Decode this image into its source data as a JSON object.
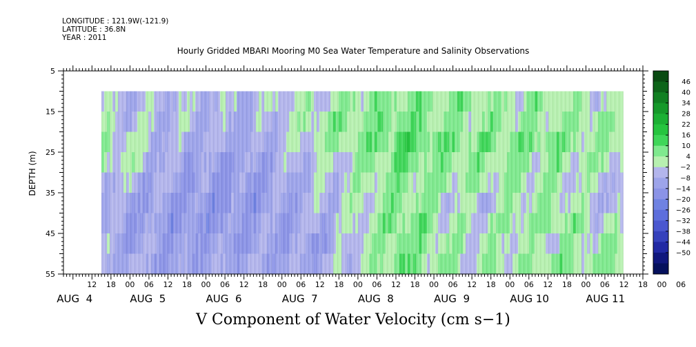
{
  "header": {
    "longitude": "LONGITUDE : 121.9W(-121.9)",
    "latitude": "LATITUDE : 36.8N",
    "year": "YEAR : 2011"
  },
  "chart_data": {
    "type": "heatmap",
    "title": "Hourly Gridded MBARI Mooring M0 Sea Water Temperature and Salinity Observations",
    "xlabel": "V Component of Water Velocity (cm s−1)",
    "ylabel": "DEPTH (m)",
    "ylim": [
      5,
      55
    ],
    "y_ticks": [
      "5",
      "15",
      "25",
      "35",
      "45",
      "55"
    ],
    "x_hour_ticks": [
      "12",
      "18",
      "00",
      "06",
      "12",
      "18",
      "00",
      "06",
      "12",
      "18",
      "00",
      "06",
      "12",
      "18",
      "00",
      "06",
      "12",
      "18",
      "00",
      "06",
      "12",
      "18",
      "00",
      "06",
      "12",
      "18",
      "00",
      "06",
      "12",
      "18",
      "00",
      "06"
    ],
    "x_day_labels": [
      "AUG  4",
      "AUG  5",
      "AUG  6",
      "AUG  7",
      "AUG  8",
      "AUG  9",
      "AUG 10",
      "AUG 11"
    ],
    "data_depth_range": [
      10,
      55
    ],
    "data_start": "AUG 4 15:00",
    "data_end": "AUG 11 12:00",
    "colorbar": {
      "levels": [
        46,
        40,
        34,
        28,
        22,
        16,
        10,
        4,
        -2,
        -8,
        -14,
        -20,
        -26,
        -32,
        -38,
        -44,
        -50
      ],
      "labels": [
        "46",
        "40",
        "34",
        "28",
        "22",
        "16",
        "10",
        "4",
        "−2",
        "−8",
        "−14",
        "−20",
        "−26",
        "−32",
        "−38",
        "−44",
        "−50"
      ],
      "colors": [
        "#0a4a12",
        "#0d6419",
        "#118022",
        "#16992a",
        "#1cb034",
        "#26c43f",
        "#3fd659",
        "#7fe98e",
        "#b7f0b0",
        "#b3b5ec",
        "#9da4ea",
        "#8b93e6",
        "#6f82e2",
        "#5d6edc",
        "#4a57cf",
        "#3541bc",
        "#2129a4",
        "#10177d",
        "#05105c"
      ]
    },
    "columns": [
      {
        "day": "AUG  4",
        "v": [
          -6,
          -2,
          4,
          3,
          -4,
          -8,
          -10,
          -9,
          -8
        ]
      },
      {
        "day": "AUG  5",
        "v": [
          -4,
          -6,
          -8,
          -10,
          -12,
          -14,
          -14,
          -12,
          -12
        ]
      },
      {
        "day": "AUG  6",
        "v": [
          -6,
          -8,
          -10,
          -12,
          -14,
          -14,
          -12,
          -12,
          -10
        ]
      },
      {
        "day": "AUG  7",
        "v": [
          2,
          4,
          2,
          -2,
          -4,
          -6,
          -8,
          -10,
          -8
        ]
      },
      {
        "day": "AUG  8",
        "v": [
          6,
          8,
          10,
          8,
          6,
          6,
          8,
          8,
          8
        ]
      },
      {
        "day": "AUG  9",
        "v": [
          4,
          2,
          6,
          4,
          2,
          -4,
          -2,
          -2,
          0
        ]
      },
      {
        "day": "AUG 10",
        "v": [
          2,
          4,
          6,
          4,
          2,
          4,
          6,
          2,
          4
        ]
      },
      {
        "day": "AUG 11",
        "v": [
          -4,
          2,
          2,
          0,
          -6,
          -8,
          -4,
          2,
          4
        ]
      }
    ]
  }
}
